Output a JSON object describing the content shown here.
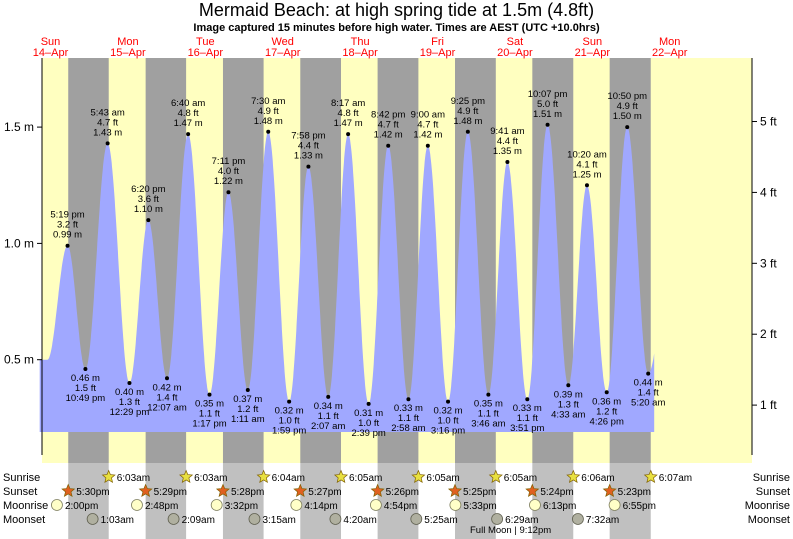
{
  "title": "Mermaid Beach: at high  spring tide at 1.5m (4.8ft)",
  "subtitle": "Image captured 15 minutes before high water. Times are AEST (UTC +10.0hrs)",
  "colors": {
    "day": "#ffffc0",
    "night": "#a0a0a0",
    "tide": "#a0a8ff",
    "day_label": "#ff0000",
    "sun_marker": "#e8e040",
    "sunset_marker": "#e06020",
    "moonrise_marker": "#ffffc8",
    "moonset_marker": "#b0b0a0"
  },
  "row_labels": {
    "sunrise": "Sunrise",
    "sunset": "Sunset",
    "moonrise": "Moonrise",
    "moonset": "Moonset"
  },
  "moon_phase": {
    "label": "Full Moon",
    "time": "9:12pm"
  },
  "chart_data": {
    "type": "area",
    "title": "Mermaid Beach: at high  spring tide at 1.5m (4.8ft)",
    "y_left_ticks": [
      {
        "v": 0.5,
        "label": "0.5 m"
      },
      {
        "v": 1.0,
        "label": "1.0 m"
      },
      {
        "v": 1.5,
        "label": "1.5 m"
      }
    ],
    "y_right_ticks": [
      {
        "ft": 1,
        "label": "1 ft"
      },
      {
        "ft": 2,
        "label": "2 ft"
      },
      {
        "ft": 3,
        "label": "3 ft"
      },
      {
        "ft": 4,
        "label": "4 ft"
      },
      {
        "ft": 5,
        "label": "5 ft"
      }
    ],
    "ylim_m": [
      0.0,
      1.8
    ],
    "x_range_days": [
      0,
      8.58
    ],
    "days": [
      {
        "dow": "Sun",
        "date": "14–Apr"
      },
      {
        "dow": "Mon",
        "date": "15–Apr"
      },
      {
        "dow": "Tue",
        "date": "16–Apr"
      },
      {
        "dow": "Wed",
        "date": "17–Apr"
      },
      {
        "dow": "Thu",
        "date": "18–Apr"
      },
      {
        "dow": "Fri",
        "date": "19–Apr"
      },
      {
        "dow": "Sat",
        "date": "20–Apr"
      },
      {
        "dow": "Sun",
        "date": "21–Apr"
      },
      {
        "dow": "Mon",
        "date": "22–Apr"
      }
    ],
    "tides": [
      {
        "t": 0.72,
        "time": "5:19 pm",
        "ft": "3.2 ft",
        "m": "0.99 m",
        "h": 0.99,
        "type": "high"
      },
      {
        "t": 0.951,
        "time": "10:49 pm",
        "ft": "1.5 ft",
        "m": "0.46 m",
        "h": 0.46,
        "type": "low"
      },
      {
        "t": 1.238,
        "time": "5:43 am",
        "ft": "4.7 ft",
        "m": "1.43 m",
        "h": 1.43,
        "type": "high"
      },
      {
        "t": 1.52,
        "time": "12:29 pm",
        "ft": "1.3 ft",
        "m": "0.40 m",
        "h": 0.4,
        "type": "low"
      },
      {
        "t": 1.764,
        "time": "6:20 pm",
        "ft": "3.6 ft",
        "m": "1.10 m",
        "h": 1.1,
        "type": "high"
      },
      {
        "t": 2.005,
        "time": "12:07 am",
        "ft": "1.4 ft",
        "m": "0.42 m",
        "h": 0.42,
        "type": "low"
      },
      {
        "t": 2.278,
        "time": "6:40 am",
        "ft": "4.8 ft",
        "m": "1.47 m",
        "h": 1.47,
        "type": "high"
      },
      {
        "t": 2.554,
        "time": "1:17 pm",
        "ft": "1.1 ft",
        "m": "0.35 m",
        "h": 0.35,
        "type": "low"
      },
      {
        "t": 2.799,
        "time": "7:11 pm",
        "ft": "4.0 ft",
        "m": "1.22 m",
        "h": 1.22,
        "type": "high"
      },
      {
        "t": 3.049,
        "time": "1:11 am",
        "ft": "1.2 ft",
        "m": "0.37 m",
        "h": 0.37,
        "type": "low"
      },
      {
        "t": 3.313,
        "time": "7:30 am",
        "ft": "4.9 ft",
        "m": "1.48 m",
        "h": 1.48,
        "type": "high"
      },
      {
        "t": 3.583,
        "time": "1:59 pm",
        "ft": "1.0 ft",
        "m": "0.32 m",
        "h": 0.32,
        "type": "low"
      },
      {
        "t": 3.832,
        "time": "7:58 pm",
        "ft": "4.4 ft",
        "m": "1.33 m",
        "h": 1.33,
        "type": "high"
      },
      {
        "t": 4.088,
        "time": "2:07 am",
        "ft": "1.1 ft",
        "m": "0.34 m",
        "h": 0.34,
        "type": "low"
      },
      {
        "t": 4.345,
        "time": "8:17 am",
        "ft": "4.8 ft",
        "m": "1.47 m",
        "h": 1.47,
        "type": "high"
      },
      {
        "t": 4.61,
        "time": "2:39 pm",
        "ft": "1.0 ft",
        "m": "0.31 m",
        "h": 0.31,
        "type": "low"
      },
      {
        "t": 4.863,
        "time": "8:42 pm",
        "ft": "4.7 ft",
        "m": "1.42 m",
        "h": 1.42,
        "type": "high"
      },
      {
        "t": 5.124,
        "time": "2:58 am",
        "ft": "1.1 ft",
        "m": "0.33 m",
        "h": 0.33,
        "type": "low"
      },
      {
        "t": 5.375,
        "time": "9:00 am",
        "ft": "4.7 ft",
        "m": "1.42 m",
        "h": 1.42,
        "type": "high"
      },
      {
        "t": 5.636,
        "time": "3:16 pm",
        "ft": "1.0 ft",
        "m": "0.32 m",
        "h": 0.32,
        "type": "low"
      },
      {
        "t": 5.892,
        "time": "9:25 pm",
        "ft": "4.9 ft",
        "m": "1.48 m",
        "h": 1.48,
        "type": "high"
      },
      {
        "t": 6.157,
        "time": "3:46 am",
        "ft": "1.1 ft",
        "m": "0.35 m",
        "h": 0.35,
        "type": "low"
      },
      {
        "t": 6.403,
        "time": "9:41 am",
        "ft": "4.4 ft",
        "m": "1.35 m",
        "h": 1.35,
        "type": "high"
      },
      {
        "t": 6.66,
        "time": "3:51 pm",
        "ft": "1.1 ft",
        "m": "0.33 m",
        "h": 0.33,
        "type": "low"
      },
      {
        "t": 6.922,
        "time": "10:07 pm",
        "ft": "5.0 ft",
        "m": "1.51 m",
        "h": 1.51,
        "type": "high"
      },
      {
        "t": 7.19,
        "time": "4:33 am",
        "ft": "1.3 ft",
        "m": "0.39 m",
        "h": 0.39,
        "type": "low"
      },
      {
        "t": 7.431,
        "time": "10:20 am",
        "ft": "4.1 ft",
        "m": "1.25 m",
        "h": 1.25,
        "type": "high"
      },
      {
        "t": 7.686,
        "time": "4:26 pm",
        "ft": "1.2 ft",
        "m": "0.36 m",
        "h": 0.36,
        "type": "low"
      },
      {
        "t": 7.951,
        "time": "10:50 pm",
        "ft": "4.9 ft",
        "m": "1.50 m",
        "h": 1.5,
        "type": "high"
      },
      {
        "t": 8.222,
        "time": "5:20 am",
        "ft": "1.4 ft",
        "m": "0.44 m",
        "h": 0.44,
        "type": "low"
      }
    ],
    "sun": [
      {
        "rise": "6:03am",
        "rise_t": 1.252,
        "set": "5:30pm",
        "set_t": 0.729
      },
      {
        "rise": "6:03am",
        "rise_t": 2.252,
        "set": "5:29pm",
        "set_t": 1.729
      },
      {
        "rise": "6:04am",
        "rise_t": 3.253,
        "set": "5:28pm",
        "set_t": 2.728
      },
      {
        "rise": "6:05am",
        "rise_t": 4.253,
        "set": "5:27pm",
        "set_t": 3.727
      },
      {
        "rise": "6:05am",
        "rise_t": 5.253,
        "set": "5:26pm",
        "set_t": 4.726
      },
      {
        "rise": "6:05am",
        "rise_t": 6.253,
        "set": "5:25pm",
        "set_t": 5.726
      },
      {
        "rise": "6:06am",
        "rise_t": 7.254,
        "set": "5:24pm",
        "set_t": 6.725
      },
      {
        "rise": "6:07am",
        "rise_t": 8.255,
        "set": "5:23pm",
        "set_t": 7.724
      }
    ],
    "moonrise": [
      {
        "time": "2:00pm",
        "t": 0.583
      },
      {
        "time": "2:48pm",
        "t": 1.617
      },
      {
        "time": "3:32pm",
        "t": 2.647
      },
      {
        "time": "4:14pm",
        "t": 3.676
      },
      {
        "time": "4:54pm",
        "t": 4.704
      },
      {
        "time": "5:33pm",
        "t": 5.731
      },
      {
        "time": "6:13pm",
        "t": 6.759
      },
      {
        "time": "6:55pm",
        "t": 7.788
      }
    ],
    "moonset": [
      {
        "time": "1:03am",
        "t": 1.044
      },
      {
        "time": "2:09am",
        "t": 2.09
      },
      {
        "time": "3:15am",
        "t": 3.135
      },
      {
        "time": "4:20am",
        "t": 4.181
      },
      {
        "time": "5:25am",
        "t": 5.226
      },
      {
        "time": "6:29am",
        "t": 6.27
      },
      {
        "time": "7:32am",
        "t": 7.314
      }
    ]
  }
}
